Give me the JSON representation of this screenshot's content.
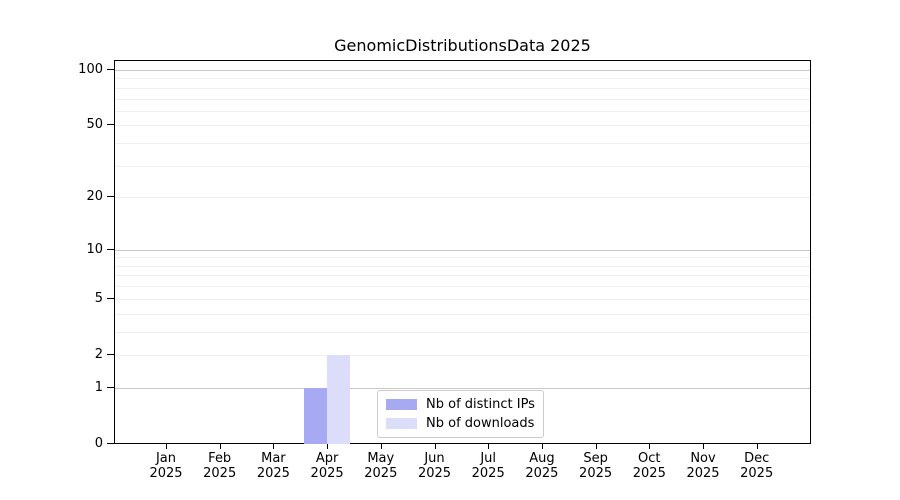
{
  "title": "GenomicDistributionsData 2025",
  "chart_data": {
    "type": "bar",
    "title": "GenomicDistributionsData 2025",
    "categories": [
      "Jan",
      "Feb",
      "Mar",
      "Apr",
      "May",
      "Jun",
      "Jul",
      "Aug",
      "Sep",
      "Oct",
      "Nov",
      "Dec"
    ],
    "tick_year": "2025",
    "series": [
      {
        "name": "Nb of distinct IPs",
        "color": "#a7aaf3",
        "values": [
          0,
          0,
          0,
          1,
          0,
          0,
          0,
          0,
          0,
          0,
          0,
          0
        ]
      },
      {
        "name": "Nb of downloads",
        "color": "#dbddfa",
        "values": [
          0,
          0,
          0,
          2,
          0,
          0,
          0,
          0,
          0,
          0,
          0,
          0
        ]
      }
    ],
    "yscale": "log1p",
    "ylim": [
      0,
      115
    ],
    "ytick_values": [
      0,
      1,
      2,
      5,
      10,
      20,
      50,
      100
    ],
    "ytick_labels": [
      "0",
      "1",
      "2",
      "5",
      "10",
      "20",
      "50",
      "100"
    ],
    "major_gridlines": [
      1,
      10,
      100
    ],
    "minor_gridlines": [
      2,
      3,
      4,
      5,
      6,
      7,
      8,
      9,
      20,
      30,
      40,
      50,
      60,
      70,
      80,
      90
    ],
    "grid": true,
    "legend_position": "lower center-right inside plot",
    "colors": {
      "axis_and_text": "#000000",
      "major_grid": "#c8c8c8",
      "minor_grid": "#f0f0f0",
      "legend_border": "#cccccc",
      "background": "#ffffff"
    }
  }
}
